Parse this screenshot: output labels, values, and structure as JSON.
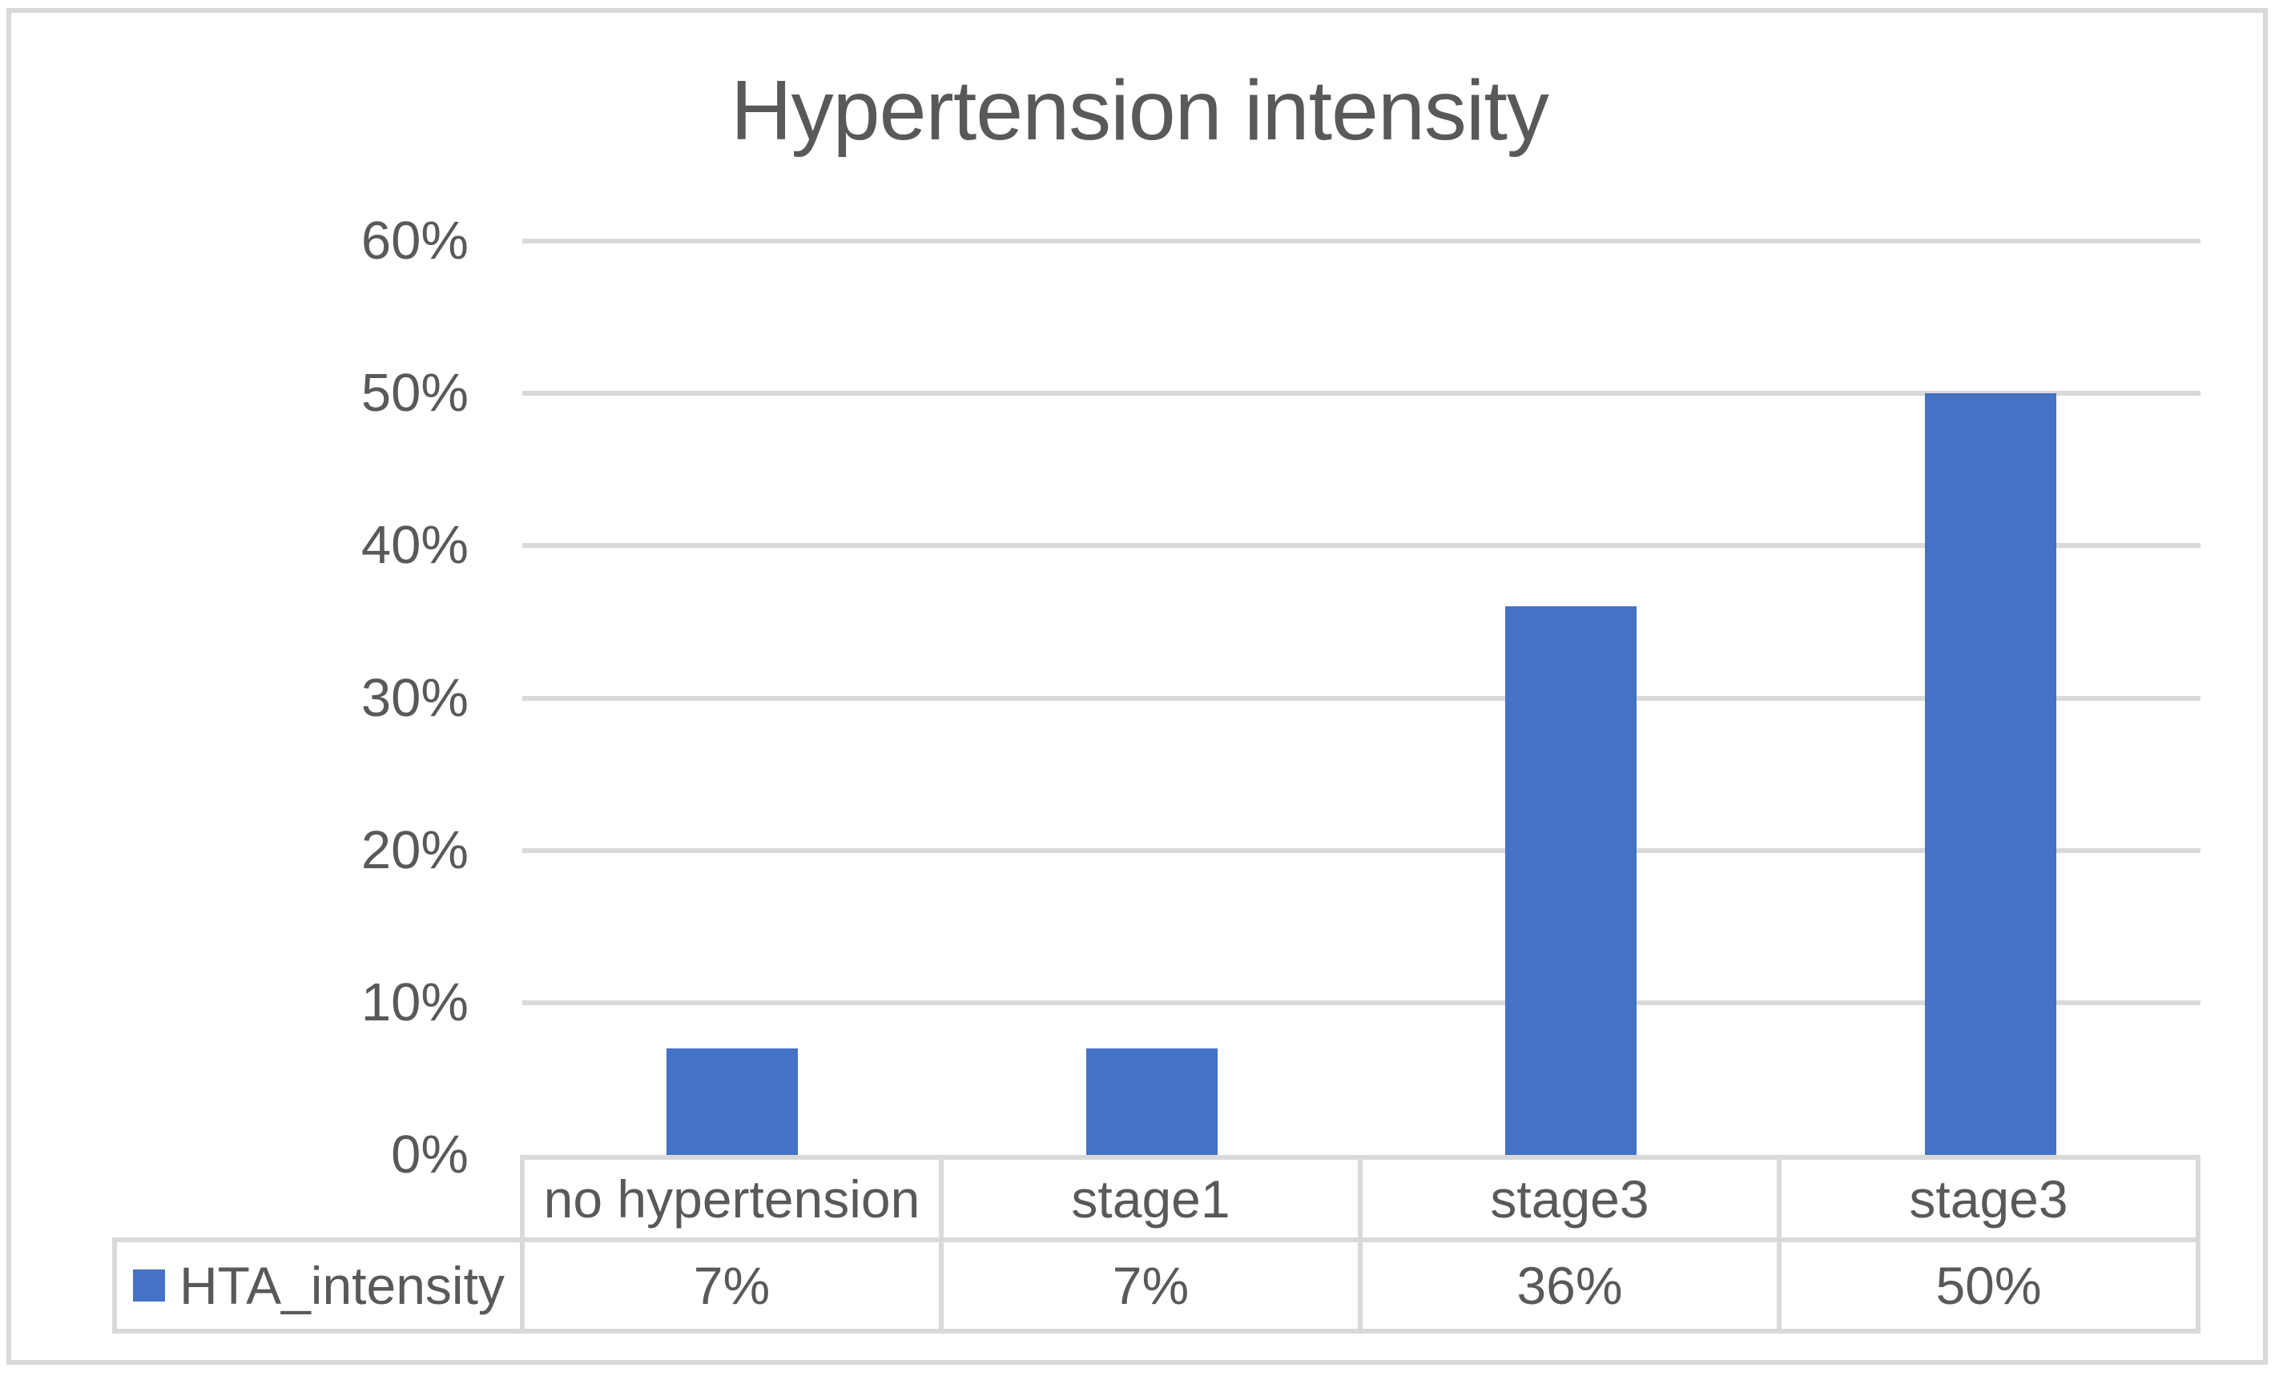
{
  "page": {
    "background_color": "#FFFFFF",
    "frame_border_color": "#D9D9D9"
  },
  "chart": {
    "title": "Hypertension intensity"
  },
  "chart_data": {
    "type": "bar",
    "title": "Hypertension intensity",
    "categories": [
      "no hypertension",
      "stage1",
      "stage3",
      "stage3"
    ],
    "series": [
      {
        "name": "HTA_intensity",
        "values": [
          7,
          7,
          36,
          50
        ],
        "display_values": [
          "7%",
          "7%",
          "36%",
          "50%"
        ],
        "color": "#4472C4"
      }
    ],
    "xlabel": "",
    "ylabel": "",
    "ylim": [
      0,
      60
    ],
    "ytick_step": 10,
    "ytick_labels": [
      "0%",
      "10%",
      "20%",
      "30%",
      "40%",
      "50%",
      "60%"
    ],
    "grid": true,
    "gridline_color": "#D9D9D9",
    "text_color": "#595959",
    "legend": {
      "label": "HTA_intensity",
      "swatch_color": "#4472C4",
      "position": "bottom-data-table"
    }
  }
}
